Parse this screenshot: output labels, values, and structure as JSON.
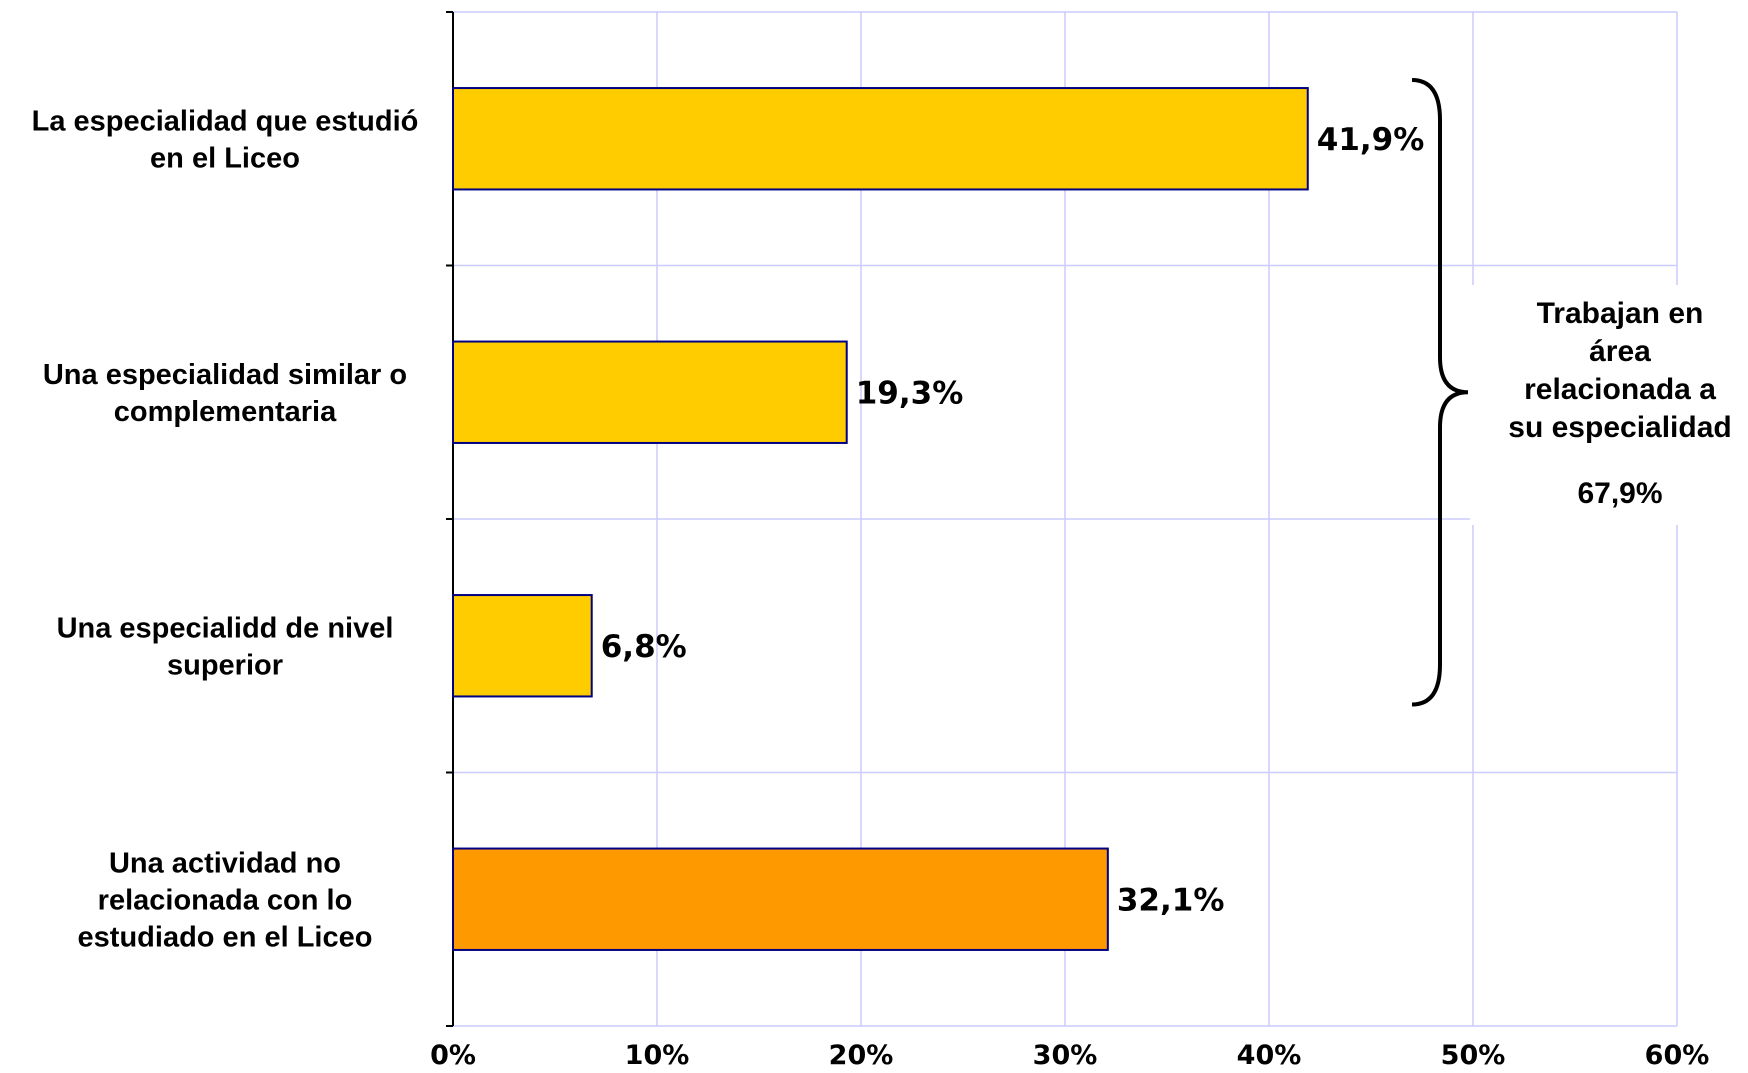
{
  "chart_data": {
    "type": "bar",
    "orientation": "horizontal",
    "categories": [
      [
        "La especialidad que estudió",
        "en el Liceo"
      ],
      [
        "Una especialidad similar o",
        "complementaria"
      ],
      [
        "Una especialidd de nivel",
        "superior"
      ],
      [
        "Una actividad no",
        "relacionada con lo",
        "estudiado en el Liceo"
      ]
    ],
    "values": [
      41.9,
      19.3,
      6.8,
      32.1
    ],
    "value_labels": [
      "41,9%",
      "19,3%",
      "6,8%",
      "32,1%"
    ],
    "bar_colors": [
      "#FFCC00",
      "#FFCC00",
      "#FFCC00",
      "#FF9900"
    ],
    "bar_border": "#000080",
    "xlim": [
      0,
      60
    ],
    "x_ticks": [
      0,
      10,
      20,
      30,
      40,
      50,
      60
    ],
    "x_tick_labels": [
      "0%",
      "10%",
      "20%",
      "30%",
      "40%",
      "50%",
      "60%"
    ],
    "grid": true,
    "grid_color": "#CCCCFF",
    "annotation": {
      "text_lines": [
        "Trabajan en",
        "área",
        "relacionada a",
        "su especialidad"
      ],
      "total": "67,9%",
      "spans_categories": [
        0,
        1,
        2
      ]
    }
  }
}
